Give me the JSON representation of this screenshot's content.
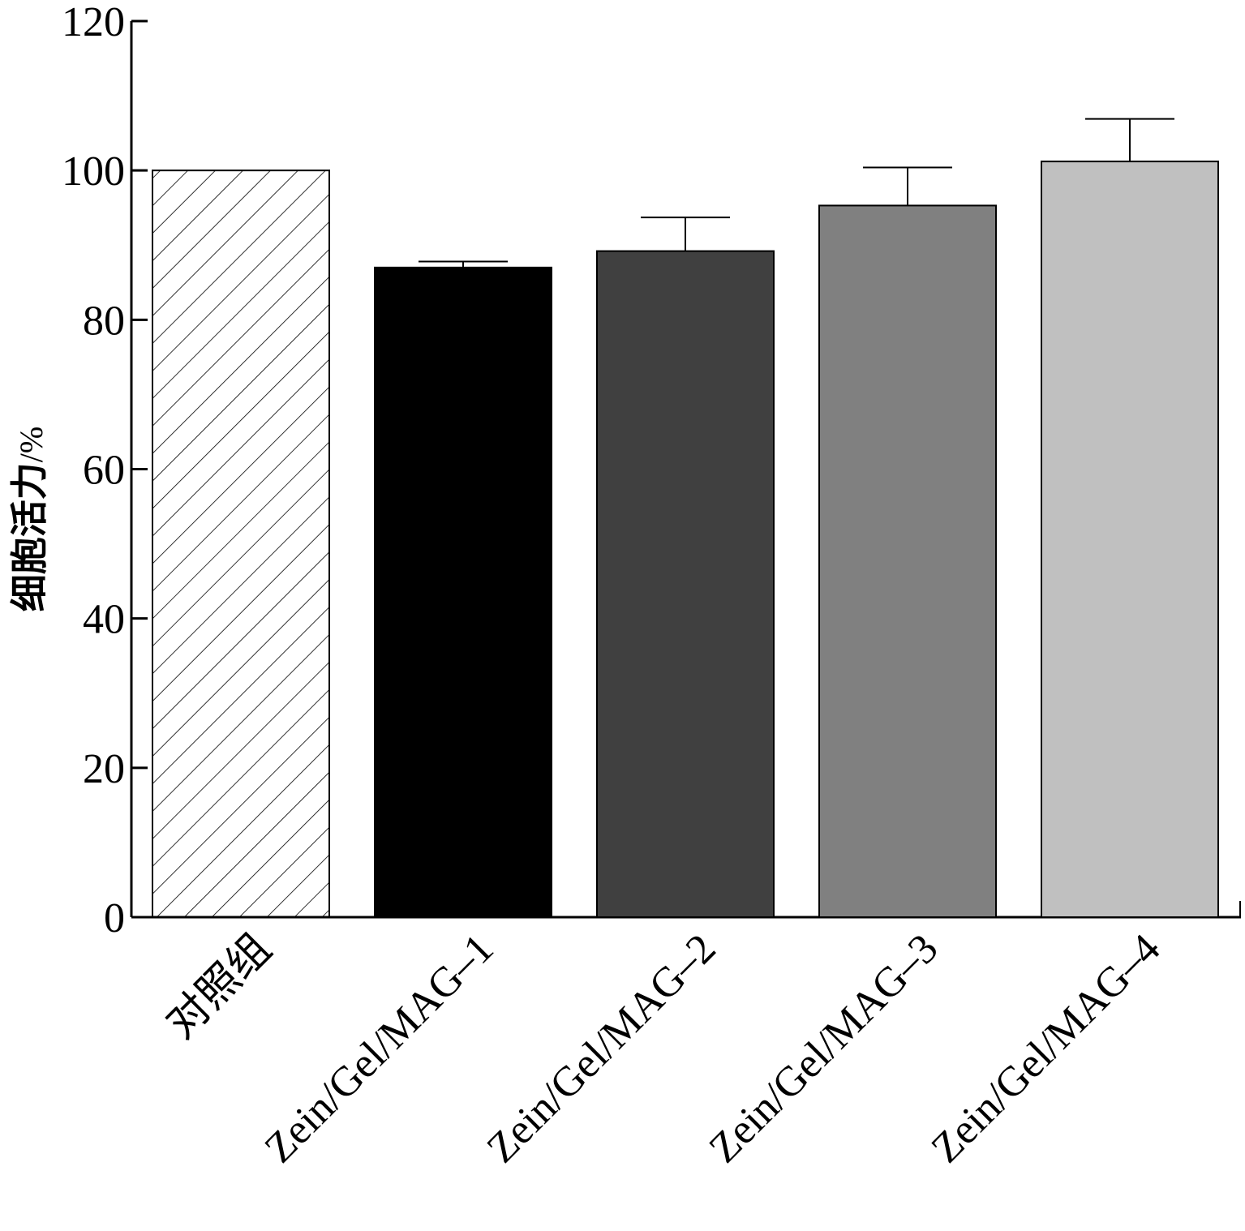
{
  "chart_data": {
    "type": "bar",
    "title": "",
    "xlabel": "",
    "ylabel": "细胞活力",
    "ylabel_unit": "/%",
    "ylim": [
      0,
      120
    ],
    "yticks": [
      0,
      20,
      40,
      60,
      80,
      100,
      120
    ],
    "categories": [
      "对照组",
      "Zein/Gel/MAG–1",
      "Zein/Gel/MAG–2",
      "Zein/Gel/MAG–3",
      "Zein/Gel/MAG–4"
    ],
    "values": [
      100,
      87,
      89.2,
      95.3,
      101.2
    ],
    "errors": [
      0,
      0.8,
      4.5,
      5.1,
      5.7
    ],
    "fills": [
      "hatch",
      "#000000",
      "#404040",
      "#808080",
      "#c0c0c0"
    ],
    "grid": false
  }
}
